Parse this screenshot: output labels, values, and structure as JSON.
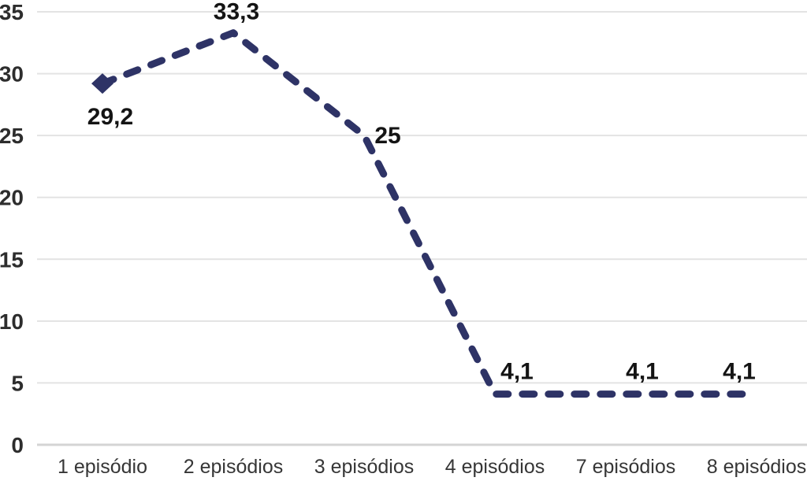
{
  "chart_data": {
    "type": "line",
    "title": "",
    "xlabel": "",
    "ylabel": "",
    "categories": [
      "1 episódio",
      "2 episódios",
      "3 episódios",
      "4 episódios",
      "7 episódios",
      "8 episódios"
    ],
    "series": [
      {
        "name": "episodios",
        "values": [
          29.2,
          33.3,
          25,
          4.1,
          4.1,
          4.1
        ],
        "point_labels": [
          "29,2",
          "33,3",
          "25",
          "4,1",
          "4,1",
          "4,1"
        ]
      }
    ],
    "ylim": [
      0,
      35
    ],
    "yticks": [
      0,
      5,
      10,
      15,
      20,
      25,
      30,
      35
    ],
    "ytick_labels": [
      "0",
      "5",
      "10",
      "15",
      "20",
      "25",
      "30",
      "35"
    ],
    "grid": true,
    "legend": false,
    "line_style": "dashed",
    "first_point_marker": "diamond",
    "colors": {
      "line": "#2e3366",
      "marker": "#2e3366",
      "gridline": "#e3e3e3",
      "zero_line": "#d4d4d4",
      "tick_label": "#2d2d2d",
      "category_label": "#363636",
      "point_label": "#141414",
      "background": "#ffffff"
    }
  }
}
